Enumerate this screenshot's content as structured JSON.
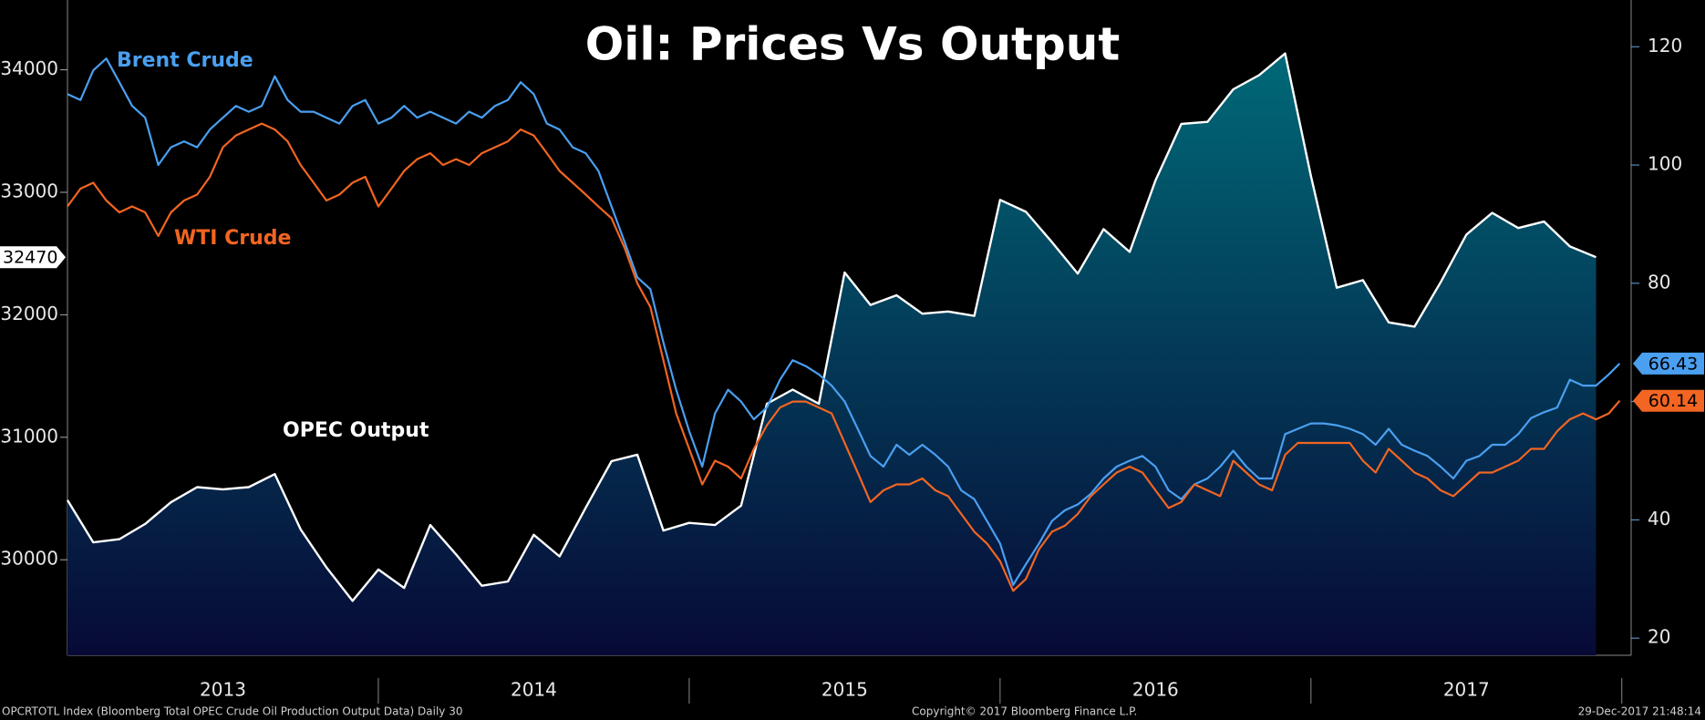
{
  "chart_data": {
    "type": "line",
    "title": "Oil: Prices Vs Output",
    "xlim": [
      2013,
      2018.03
    ],
    "xticks": [
      {
        "value": 2013.5,
        "label": "2013"
      },
      {
        "value": 2014.5,
        "label": "2014"
      },
      {
        "value": 2015.5,
        "label": "2015"
      },
      {
        "value": 2016.5,
        "label": "2016"
      },
      {
        "value": 2017.5,
        "label": "2017"
      }
    ],
    "ylim": [
      29220,
      34570
    ],
    "yticks": [
      30000,
      31000,
      32000,
      33000,
      34000
    ],
    "y2lim": [
      17.1,
      127.9
    ],
    "y2ticks": [
      20,
      40,
      60,
      80,
      100,
      120
    ],
    "series": [
      {
        "name": "OPEC Output",
        "color": "#ffffff",
        "area": true,
        "area_colors": [
          "#006a78",
          "#070a36"
        ],
        "x": [
          2013,
          2013.083,
          2013.167,
          2013.25,
          2013.333,
          2013.417,
          2013.5,
          2013.583,
          2013.667,
          2013.75,
          2013.833,
          2013.917,
          2014,
          2014.083,
          2014.167,
          2014.25,
          2014.333,
          2014.417,
          2014.5,
          2014.583,
          2014.667,
          2014.75,
          2014.833,
          2014.917,
          2015,
          2015.083,
          2015.167,
          2015.25,
          2015.333,
          2015.417,
          2015.5,
          2015.583,
          2015.667,
          2015.75,
          2015.833,
          2015.917,
          2016,
          2016.083,
          2016.167,
          2016.25,
          2016.333,
          2016.417,
          2016.5,
          2016.583,
          2016.667,
          2016.75,
          2016.833,
          2016.917,
          2017,
          2017.083,
          2017.167,
          2017.25,
          2017.333,
          2017.417,
          2017.5,
          2017.583,
          2017.667,
          2017.75,
          2017.833,
          2017.917
        ],
        "values": [
          30487,
          30142,
          30168,
          30292,
          30469,
          30593,
          30575,
          30593,
          30699,
          30248,
          29938,
          29664,
          29920,
          29770,
          30283,
          30044,
          29788,
          29823,
          30204,
          30027,
          30425,
          30805,
          30858,
          30239,
          30301,
          30283,
          30442,
          31274,
          31389,
          31274,
          32345,
          32080,
          32159,
          32009,
          32027,
          31991,
          32938,
          32841,
          32593,
          32336,
          32699,
          32513,
          33097,
          33558,
          33575,
          33841,
          33956,
          34133,
          33133,
          32221,
          32283,
          31938,
          31903,
          32265,
          32655,
          32832,
          32708,
          32761,
          32558,
          32470
        ]
      },
      {
        "name": "Brent Crude",
        "color": "#4a9ff0",
        "axis": "y2",
        "x": [
          2013,
          2013.042,
          2013.083,
          2013.125,
          2013.167,
          2013.208,
          2013.25,
          2013.292,
          2013.333,
          2013.375,
          2013.417,
          2013.458,
          2013.5,
          2013.542,
          2013.583,
          2013.625,
          2013.667,
          2013.708,
          2013.75,
          2013.792,
          2013.833,
          2013.875,
          2013.917,
          2013.958,
          2014,
          2014.042,
          2014.083,
          2014.125,
          2014.167,
          2014.208,
          2014.25,
          2014.292,
          2014.333,
          2014.375,
          2014.417,
          2014.458,
          2014.5,
          2014.542,
          2014.583,
          2014.625,
          2014.667,
          2014.708,
          2014.75,
          2014.792,
          2014.833,
          2014.875,
          2014.917,
          2014.958,
          2015,
          2015.042,
          2015.083,
          2015.125,
          2015.167,
          2015.208,
          2015.25,
          2015.292,
          2015.333,
          2015.375,
          2015.417,
          2015.458,
          2015.5,
          2015.542,
          2015.583,
          2015.625,
          2015.667,
          2015.708,
          2015.75,
          2015.792,
          2015.833,
          2015.875,
          2015.917,
          2015.958,
          2016,
          2016.042,
          2016.083,
          2016.125,
          2016.167,
          2016.208,
          2016.25,
          2016.292,
          2016.333,
          2016.375,
          2016.417,
          2016.458,
          2016.5,
          2016.542,
          2016.583,
          2016.625,
          2016.667,
          2016.708,
          2016.75,
          2016.792,
          2016.833,
          2016.875,
          2016.917,
          2016.958,
          2017,
          2017.042,
          2017.083,
          2017.125,
          2017.167,
          2017.208,
          2017.25,
          2017.292,
          2017.333,
          2017.375,
          2017.417,
          2017.458,
          2017.5,
          2017.542,
          2017.583,
          2017.625,
          2017.667,
          2017.708,
          2017.75,
          2017.792,
          2017.833,
          2017.875,
          2017.917,
          2017.958,
          2017.993
        ],
        "values": [
          112,
          111,
          116,
          118,
          114,
          110,
          108,
          100,
          103,
          104,
          103,
          106,
          108,
          110,
          109,
          110,
          115,
          111,
          109,
          109,
          108,
          107,
          110,
          111,
          107,
          108,
          110,
          108,
          109,
          108,
          107,
          109,
          108,
          110,
          111,
          114,
          112,
          107,
          106,
          103,
          102,
          99,
          93,
          87,
          81,
          79,
          70,
          62,
          55,
          49,
          58,
          62,
          60,
          57,
          59,
          63.7,
          67,
          66,
          64.6,
          62.7,
          60,
          55.4,
          50.8,
          49,
          52.7,
          51,
          52.7,
          51,
          49,
          45,
          43.5,
          39.8,
          36,
          29,
          32.5,
          36,
          39.8,
          41.6,
          42.6,
          44.4,
          47,
          49,
          50,
          50.8,
          49,
          45,
          43.5,
          46,
          47,
          49,
          51.7,
          49,
          47,
          47,
          54.5,
          55.4,
          56.3,
          56.3,
          56,
          55.4,
          54.5,
          52.7,
          55.4,
          52.7,
          51.7,
          50.8,
          49,
          47,
          50,
          50.8,
          52.7,
          52.7,
          54.5,
          57.2,
          58.2,
          59,
          63.7,
          62.7,
          62.7,
          64.6,
          66.43
        ]
      },
      {
        "name": "WTI Crude",
        "color": "#f26522",
        "axis": "y2",
        "x": [
          2013,
          2013.042,
          2013.083,
          2013.125,
          2013.167,
          2013.208,
          2013.25,
          2013.292,
          2013.333,
          2013.375,
          2013.417,
          2013.458,
          2013.5,
          2013.542,
          2013.583,
          2013.625,
          2013.667,
          2013.708,
          2013.75,
          2013.792,
          2013.833,
          2013.875,
          2013.917,
          2013.958,
          2014,
          2014.042,
          2014.083,
          2014.125,
          2014.167,
          2014.208,
          2014.25,
          2014.292,
          2014.333,
          2014.375,
          2014.417,
          2014.458,
          2014.5,
          2014.542,
          2014.583,
          2014.625,
          2014.667,
          2014.708,
          2014.75,
          2014.792,
          2014.833,
          2014.875,
          2014.917,
          2014.958,
          2015,
          2015.042,
          2015.083,
          2015.125,
          2015.167,
          2015.208,
          2015.25,
          2015.292,
          2015.333,
          2015.375,
          2015.417,
          2015.458,
          2015.5,
          2015.542,
          2015.583,
          2015.625,
          2015.667,
          2015.708,
          2015.75,
          2015.792,
          2015.833,
          2015.875,
          2015.917,
          2015.958,
          2016,
          2016.042,
          2016.083,
          2016.125,
          2016.167,
          2016.208,
          2016.25,
          2016.292,
          2016.333,
          2016.375,
          2016.417,
          2016.458,
          2016.5,
          2016.542,
          2016.583,
          2016.625,
          2016.667,
          2016.708,
          2016.75,
          2016.792,
          2016.833,
          2016.875,
          2016.917,
          2016.958,
          2017,
          2017.042,
          2017.083,
          2017.125,
          2017.167,
          2017.208,
          2017.25,
          2017.292,
          2017.333,
          2017.375,
          2017.417,
          2017.458,
          2017.5,
          2017.542,
          2017.583,
          2017.625,
          2017.667,
          2017.708,
          2017.75,
          2017.792,
          2017.833,
          2017.875,
          2017.917,
          2017.958,
          2017.993
        ],
        "values": [
          93,
          96,
          97,
          94,
          92,
          93,
          92,
          88,
          92,
          94,
          95,
          98,
          103,
          105,
          106,
          107,
          106,
          104,
          100,
          97,
          94,
          95,
          97,
          98,
          93,
          96,
          99,
          101,
          102,
          100,
          101,
          100,
          102,
          103,
          104,
          106,
          105,
          102,
          99,
          97,
          95,
          93,
          91,
          86,
          80,
          76,
          67,
          58,
          52,
          46,
          50,
          49,
          47,
          52,
          56,
          59,
          60,
          60,
          59,
          58,
          53,
          48,
          43,
          45,
          46,
          46,
          47,
          45,
          44,
          41,
          38,
          36,
          33,
          28,
          30,
          35,
          38,
          39,
          41,
          44,
          46,
          48,
          49,
          48,
          45,
          42,
          43,
          46,
          45,
          44,
          50,
          48,
          46,
          45,
          51,
          53,
          53,
          53,
          53,
          53,
          50,
          48,
          52,
          50,
          48,
          47,
          45,
          44,
          46,
          48,
          48,
          49,
          50,
          52,
          52,
          55,
          57,
          58,
          57,
          58,
          60.14
        ]
      }
    ]
  },
  "footer": {
    "left": "OPCRTOTL Index (Bloomberg Total OPEC Crude Oil Production Output Data)  Daily 30",
    "center": "Copyright© 2017 Bloomberg Finance L.P.",
    "right": "29-Dec-2017 21:48:14"
  }
}
